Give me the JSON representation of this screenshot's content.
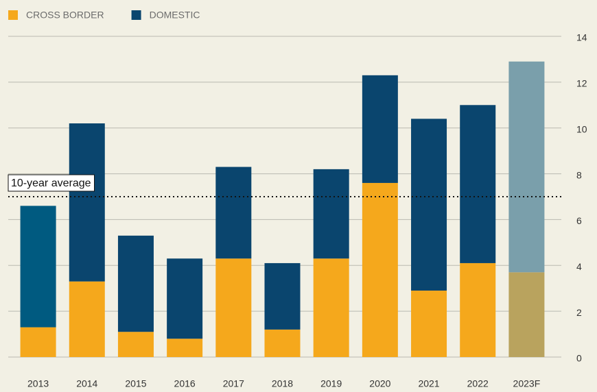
{
  "chart_data": {
    "type": "stacked_bar",
    "categories": [
      "2013",
      "2014",
      "2015",
      "2016",
      "2017",
      "2018",
      "2019",
      "2020",
      "2021",
      "2022",
      "2023F"
    ],
    "series": [
      {
        "name": "CROSS BORDER",
        "color": "#f5a81c",
        "colors": [
          "#f5a81c",
          "#f5a81c",
          "#f5a81c",
          "#f5a81c",
          "#f5a81c",
          "#f5a81c",
          "#f5a81c",
          "#f5a81c",
          "#f5a81c",
          "#f5a81c",
          "#b9a35e"
        ],
        "values": [
          1.3,
          3.3,
          1.1,
          0.8,
          4.3,
          1.2,
          4.3,
          7.6,
          2.9,
          4.1,
          3.7
        ]
      },
      {
        "name": "DOMESTIC",
        "color": "#0a456e",
        "colors": [
          "#005a80",
          "#0a456e",
          "#0a456e",
          "#0a456e",
          "#0a456e",
          "#0a456e",
          "#0a456e",
          "#0a456e",
          "#0a456e",
          "#0a456e",
          "#7a9fab"
        ],
        "values": [
          5.3,
          6.9,
          4.2,
          3.5,
          4.0,
          2.9,
          3.9,
          4.7,
          7.5,
          6.9,
          9.2
        ]
      }
    ],
    "ylim": [
      0,
      14
    ],
    "yticks": [
      0,
      2,
      4,
      6,
      8,
      10,
      12,
      14
    ],
    "grid": true,
    "annotation": {
      "text": "10-year average",
      "value": 7
    }
  }
}
